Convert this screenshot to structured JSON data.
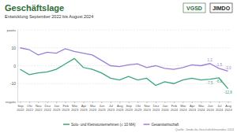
{
  "chart_data": {
    "type": "line",
    "title": "Geschäftslage",
    "subtitle": "Entwicklung September 2022 bis August 2024",
    "logos": [
      "VGSD",
      "JIMDO"
    ],
    "source": "Quelle: Jimdo-ifo-Geschäftsklimaindex 2024",
    "categories": [
      "Sep 2022",
      "Okt 2022",
      "Nov 2022",
      "Dez 2022",
      "Jan 2023",
      "Feb 2023",
      "Mär 2023",
      "Apr 2023",
      "Mai 2023",
      "Jun 2023",
      "Jul 2023",
      "Aug 2023",
      "Sep 2023",
      "Okt 2023",
      "Nov 2023",
      "Dez 2023",
      "Jan 2024",
      "Feb 2024",
      "Mär 2024",
      "Apr 2024",
      "Mai 2024",
      "Jun 2024",
      "Jul 2024",
      "Aug 2024"
    ],
    "series": [
      {
        "name": "Solo- und Kleinstunternehmen (≤ 10 MA)",
        "color": "#3aa57a",
        "values": [
          -2,
          -5,
          -4,
          -3.5,
          -2,
          1,
          4,
          -1,
          -2,
          -4,
          -7,
          -8,
          -6,
          -8,
          -7,
          -11,
          -9,
          -10,
          -8,
          -7,
          -8,
          -7.5,
          -6.8,
          -12.8
        ],
        "value_labels": [
          null,
          null,
          null,
          null,
          null,
          null,
          null,
          null,
          null,
          null,
          null,
          null,
          null,
          null,
          null,
          null,
          null,
          null,
          null,
          null,
          null,
          "-7,5",
          "-6,8",
          "-12,8"
        ]
      },
      {
        "name": "Gesamtwirtschaft",
        "color": "#9b7fd6",
        "values": [
          10,
          9,
          6,
          7.5,
          7,
          9.5,
          8,
          7,
          6,
          3,
          0,
          -0.5,
          0.5,
          1,
          -1,
          0,
          -1.5,
          -2,
          -1,
          0.5,
          0,
          1.2,
          -1.5,
          -3.0
        ],
        "value_labels": [
          null,
          null,
          null,
          null,
          null,
          null,
          null,
          null,
          null,
          null,
          null,
          null,
          null,
          null,
          null,
          null,
          null,
          null,
          null,
          null,
          null,
          "1,2",
          "-1,5",
          "-3,0"
        ]
      }
    ],
    "ylim": [
      -20,
      20
    ],
    "yticks": [
      {
        "value": -20,
        "label": "negativ"
      },
      -10,
      0,
      10,
      {
        "value": 20,
        "label": "positiv"
      }
    ],
    "grid": true,
    "data_labels": true,
    "legend": "bottom"
  }
}
